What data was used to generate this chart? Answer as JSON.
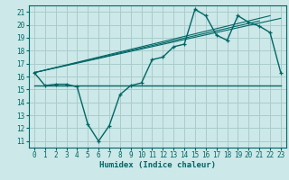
{
  "xlabel": "Humidex (Indice chaleur)",
  "background_color": "#cce8e8",
  "grid_color": "#aacccc",
  "line_color": "#006666",
  "xlim": [
    -0.5,
    23.5
  ],
  "ylim": [
    10.5,
    21.5
  ],
  "xticks": [
    0,
    1,
    2,
    3,
    4,
    5,
    6,
    7,
    8,
    9,
    10,
    11,
    12,
    13,
    14,
    15,
    16,
    17,
    18,
    19,
    20,
    21,
    22,
    23
  ],
  "yticks": [
    11,
    12,
    13,
    14,
    15,
    16,
    17,
    18,
    19,
    20,
    21
  ],
  "main_y": [
    16.3,
    15.3,
    15.4,
    15.4,
    15.2,
    12.3,
    11.0,
    12.2,
    14.6,
    15.3,
    15.5,
    17.3,
    17.5,
    18.3,
    18.5,
    21.2,
    20.7,
    19.2,
    18.8,
    20.7,
    20.2,
    19.9,
    19.4,
    16.3
  ],
  "flat_line_y": 15.3,
  "flat_line_x0": 0,
  "flat_line_x1": 23,
  "trend1_x": [
    0,
    23
  ],
  "trend1_y": [
    16.3,
    20.5
  ],
  "trend2_x": [
    0,
    22
  ],
  "trend2_y": [
    16.3,
    20.7
  ],
  "trend3_x": [
    0,
    21
  ],
  "trend3_y": [
    16.3,
    20.3
  ]
}
